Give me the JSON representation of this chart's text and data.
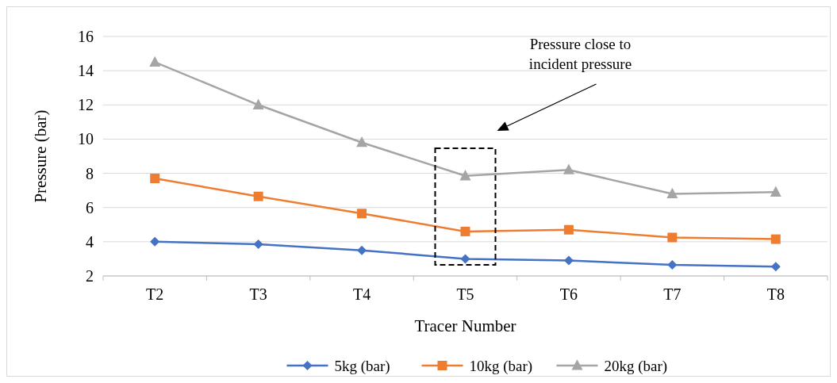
{
  "chart_data": {
    "type": "line",
    "xlabel": "Tracer Number",
    "ylabel": "Pressure (bar)",
    "categories": [
      "T2",
      "T3",
      "T4",
      "T5",
      "T6",
      "T7",
      "T8"
    ],
    "series": [
      {
        "name": "5kg (bar)",
        "color": "#4472c4",
        "marker": "diamond",
        "values": [
          4.0,
          3.85,
          3.5,
          3.0,
          2.9,
          2.65,
          2.55
        ]
      },
      {
        "name": "10kg (bar)",
        "color": "#ed7d31",
        "marker": "square",
        "values": [
          7.7,
          6.65,
          5.65,
          4.6,
          4.7,
          4.25,
          4.15
        ]
      },
      {
        "name": "20kg (bar)",
        "color": "#a5a5a5",
        "marker": "triangle",
        "values": [
          14.5,
          12.0,
          9.8,
          7.85,
          8.2,
          6.8,
          6.9
        ]
      }
    ],
    "ylim": [
      2,
      16
    ],
    "yticks": [
      2,
      4,
      6,
      8,
      10,
      12,
      14,
      16
    ],
    "grid": "y",
    "legend": "bottom",
    "annotations": [
      "Pressure close to incident pressure"
    ]
  }
}
